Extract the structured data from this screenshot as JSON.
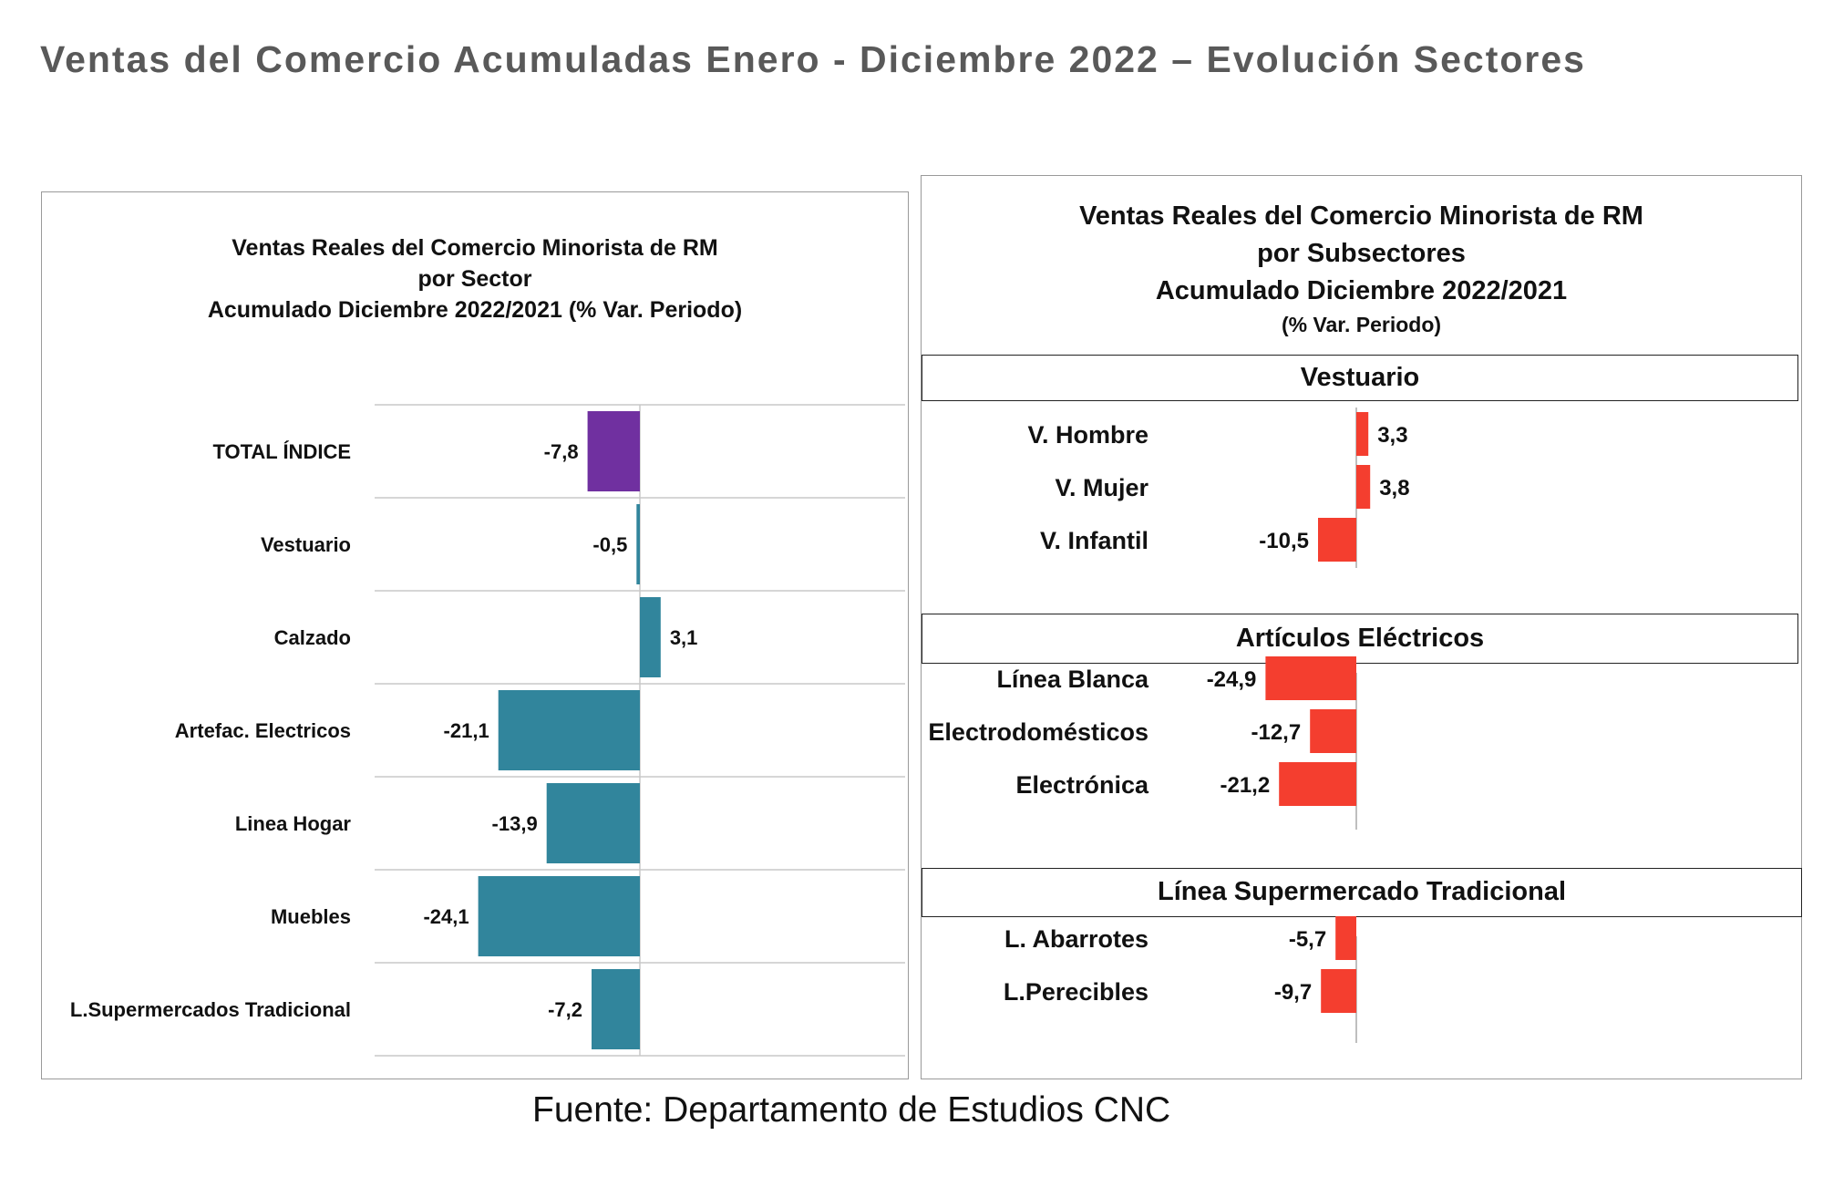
{
  "page_title": "Ventas del Comercio Acumuladas Enero - Diciembre 2022 – Evolución Sectores",
  "source": "Fuente: Departamento de Estudios CNC",
  "colors": {
    "total_bar": "#7030a0",
    "sector_bar": "#31859c",
    "subsector_bar": "#f43e2f"
  },
  "chart_data": [
    {
      "type": "bar",
      "orientation": "horizontal",
      "title_lines": [
        "Ventas Reales del Comercio Minorista de RM",
        "por Sector",
        "Acumulado Diciembre 2022/2021 (% Var. Periodo)"
      ],
      "categories": [
        "TOTAL ÍNDICE",
        "Vestuario",
        "Calzado",
        "Artefac. Electricos",
        "Linea Hogar",
        "Muebles",
        "L.Supermercados Tradicional"
      ],
      "values": [
        -7.8,
        -0.5,
        3.1,
        -21.1,
        -13.9,
        -24.1,
        -7.2
      ],
      "value_labels": [
        "-7,8",
        "-0,5",
        "3,1",
        "-21,1",
        "-13,9",
        "-24,1",
        "-7,2"
      ],
      "grid": true
    },
    {
      "type": "bar",
      "orientation": "horizontal",
      "title_lines": [
        "Ventas Reales del Comercio Minorista de RM",
        "por Subsectores",
        "Acumulado Diciembre 2022/2021",
        "(% Var. Periodo)"
      ],
      "groups": [
        {
          "name": "Vestuario",
          "categories": [
            "V. Hombre",
            "V. Mujer",
            "V. Infantil"
          ],
          "values": [
            3.3,
            3.8,
            -10.5
          ],
          "value_labels": [
            "3,3",
            "3,8",
            "-10,5"
          ]
        },
        {
          "name": "Artículos Eléctricos",
          "categories": [
            "Línea Blanca",
            "Electrodomésticos",
            "Electrónica"
          ],
          "values": [
            -24.9,
            -12.7,
            -21.2
          ],
          "value_labels": [
            "-24,9",
            "-12,7",
            "-21,2"
          ]
        },
        {
          "name": "Línea  Supermercado Tradicional",
          "categories": [
            "L. Abarrotes",
            "L.Perecibles"
          ],
          "values": [
            -5.7,
            -9.7
          ],
          "value_labels": [
            "-5,7",
            "-9,7"
          ]
        }
      ],
      "grid": false
    }
  ]
}
